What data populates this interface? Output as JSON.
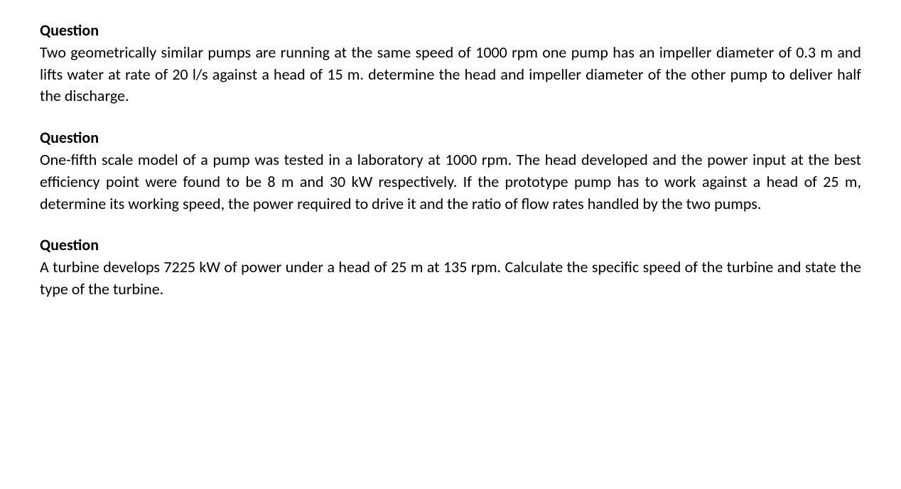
{
  "document": {
    "background_color": "#ffffff",
    "text_color": "#000000",
    "font_family": "Calibri, Arial, sans-serif",
    "body_fontsize": 22,
    "heading_fontweight": "bold",
    "questions": [
      {
        "heading": "Question",
        "body": "Two geometrically similar pumps are running at the same speed of 1000 rpm one pump has an impeller diameter of 0.3 m and lifts water at rate of 20 l/s against a head of 15 m. determine the head and impeller diameter of the other pump to deliver half the discharge."
      },
      {
        "heading": "Question",
        "body": "One-fifth scale model of a pump was tested in a laboratory at 1000 rpm. The head developed and the power input at the best efficiency point were found to be 8 m and 30 kW respectively. If the prototype pump has to work against a head of 25 m, determine its working speed, the power required to drive it and the ratio of flow rates handled by the two pumps."
      },
      {
        "heading": "Question",
        "body": "A turbine develops 7225 kW of power under a head of 25 m at 135 rpm. Calculate the specific speed of the turbine and state the type of the turbine."
      }
    ]
  }
}
